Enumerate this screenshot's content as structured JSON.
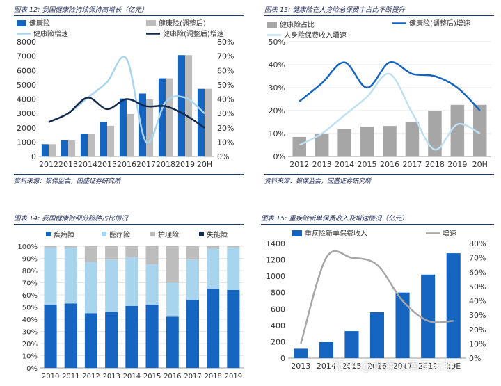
{
  "watermark": "知乎 @北海以南春末眠",
  "chart_data": [
    {
      "id": "p12",
      "type": "bar",
      "title": "图表 12:  我国健康险持续保持高增长（亿元）",
      "source": "资料来源：银保监会，国盛证券研究所",
      "categories": [
        "2012",
        "2013",
        "2014",
        "2015",
        "2016",
        "2017",
        "2018",
        "2019",
        "20H"
      ],
      "series": [
        {
          "name": "健康险",
          "kind": "bar",
          "axis": "left",
          "color": "#1565c0",
          "values": [
            860,
            1120,
            1590,
            2410,
            4040,
            4390,
            5450,
            7070,
            4720
          ]
        },
        {
          "name": "健康险(调整后)",
          "kind": "bar",
          "axis": "left",
          "color": "#bdbdbd",
          "values": [
            860,
            1120,
            1590,
            2140,
            2960,
            3980,
            5450,
            7070,
            4720
          ]
        },
        {
          "name": "健康险增速",
          "kind": "line",
          "axis": "right",
          "color": "#a8d4ee",
          "values": [
            24,
            30,
            41,
            52,
            68,
            10,
            38,
            41,
            30
          ]
        },
        {
          "name": "健康险(调整后)增速",
          "kind": "line",
          "axis": "right",
          "color": "#13294b",
          "values": [
            24,
            30,
            41,
            33,
            40,
            35,
            35,
            29,
            20
          ]
        }
      ],
      "ylim": [
        0,
        8000
      ],
      "yticks": [
        0,
        1000,
        2000,
        3000,
        4000,
        5000,
        6000,
        7000,
        8000
      ],
      "y2lim": [
        0,
        80
      ],
      "y2ticks": [
        "0%",
        "10%",
        "20%",
        "30%",
        "40%",
        "50%",
        "60%",
        "70%",
        "80%"
      ]
    },
    {
      "id": "p13",
      "type": "bar",
      "title": "图表 13:  健康险在人身险总保费中占比不断提升",
      "source": "资料来源：银保监会，国盛证券研究所",
      "categories": [
        "2012",
        "2013",
        "2014",
        "2015",
        "2016",
        "2017",
        "2018",
        "2019",
        "20H"
      ],
      "series": [
        {
          "name": "健康险占比",
          "kind": "bar",
          "axis": "left",
          "color": "#a6a6a6",
          "values": [
            8.5,
            10,
            12,
            13,
            13.3,
            15,
            20,
            22.5,
            22.5
          ]
        },
        {
          "name": "健康险(调整后)增速",
          "kind": "line",
          "axis": "left",
          "color": "#1565c0",
          "values": [
            24,
            32,
            41,
            30,
            41,
            36,
            35,
            30,
            20
          ]
        },
        {
          "name": "人身险保费收入增速",
          "kind": "line",
          "axis": "left",
          "color": "#bfe0f3",
          "values": [
            5,
            10,
            18,
            26,
            36,
            19,
            3,
            14,
            10
          ]
        }
      ],
      "ylim": [
        0,
        50
      ],
      "yticks": [
        "0%",
        "10%",
        "20%",
        "30%",
        "40%",
        "50%"
      ]
    },
    {
      "id": "p14",
      "type": "bar",
      "title": "图表 14:  我国健康险细分险种占比情况",
      "source": "",
      "categories": [
        "2010",
        "2011",
        "2012",
        "2013",
        "2014",
        "2015",
        "2016",
        "2017",
        "2018",
        "2019"
      ],
      "series": [
        {
          "name": "疾病险",
          "color": "#1565c0",
          "values": [
            52,
            53,
            45,
            46,
            51,
            52,
            42,
            56,
            65,
            64
          ]
        },
        {
          "name": "医疗险",
          "color": "#a8d4ee",
          "values": [
            47,
            46,
            42,
            43,
            40,
            33,
            28,
            33,
            33,
            35
          ]
        },
        {
          "name": "护理险",
          "color": "#bdbdbd",
          "values": [
            1,
            1,
            13,
            11,
            9,
            15,
            30,
            11,
            2,
            1
          ]
        },
        {
          "name": "失能险",
          "color": "#13294b",
          "values": [
            0,
            0,
            0,
            0,
            0,
            0,
            0,
            0,
            0,
            0
          ]
        }
      ],
      "ylim": [
        0,
        100
      ],
      "yticks": [
        "0%",
        "10%",
        "20%",
        "30%",
        "40%",
        "50%",
        "60%",
        "70%",
        "80%",
        "90%",
        "100%"
      ]
    },
    {
      "id": "p15",
      "type": "bar",
      "title": "图表 15:  重疾险新单保费收入及增速情况（亿元）",
      "source": "",
      "categories": [
        "2013",
        "2014",
        "2015",
        "2016",
        "2017",
        "2018",
        "19E"
      ],
      "series": [
        {
          "name": "重疾险新单保费收入",
          "kind": "bar",
          "axis": "left",
          "color": "#1565c0",
          "values": [
            115,
            195,
            330,
            560,
            800,
            1020,
            1280
          ]
        },
        {
          "name": "增速",
          "kind": "line",
          "axis": "right",
          "color": "#a6a6a6",
          "values": [
            10,
            70,
            70,
            65,
            40,
            26,
            26
          ]
        }
      ],
      "ylim": [
        0,
        1400
      ],
      "yticks": [
        0,
        200,
        400,
        600,
        800,
        1000,
        1200,
        1400
      ],
      "y2lim": [
        0,
        80
      ],
      "y2ticks": [
        "0%",
        "10%",
        "20%",
        "30%",
        "40%",
        "50%",
        "60%",
        "70%",
        "80%"
      ]
    }
  ]
}
